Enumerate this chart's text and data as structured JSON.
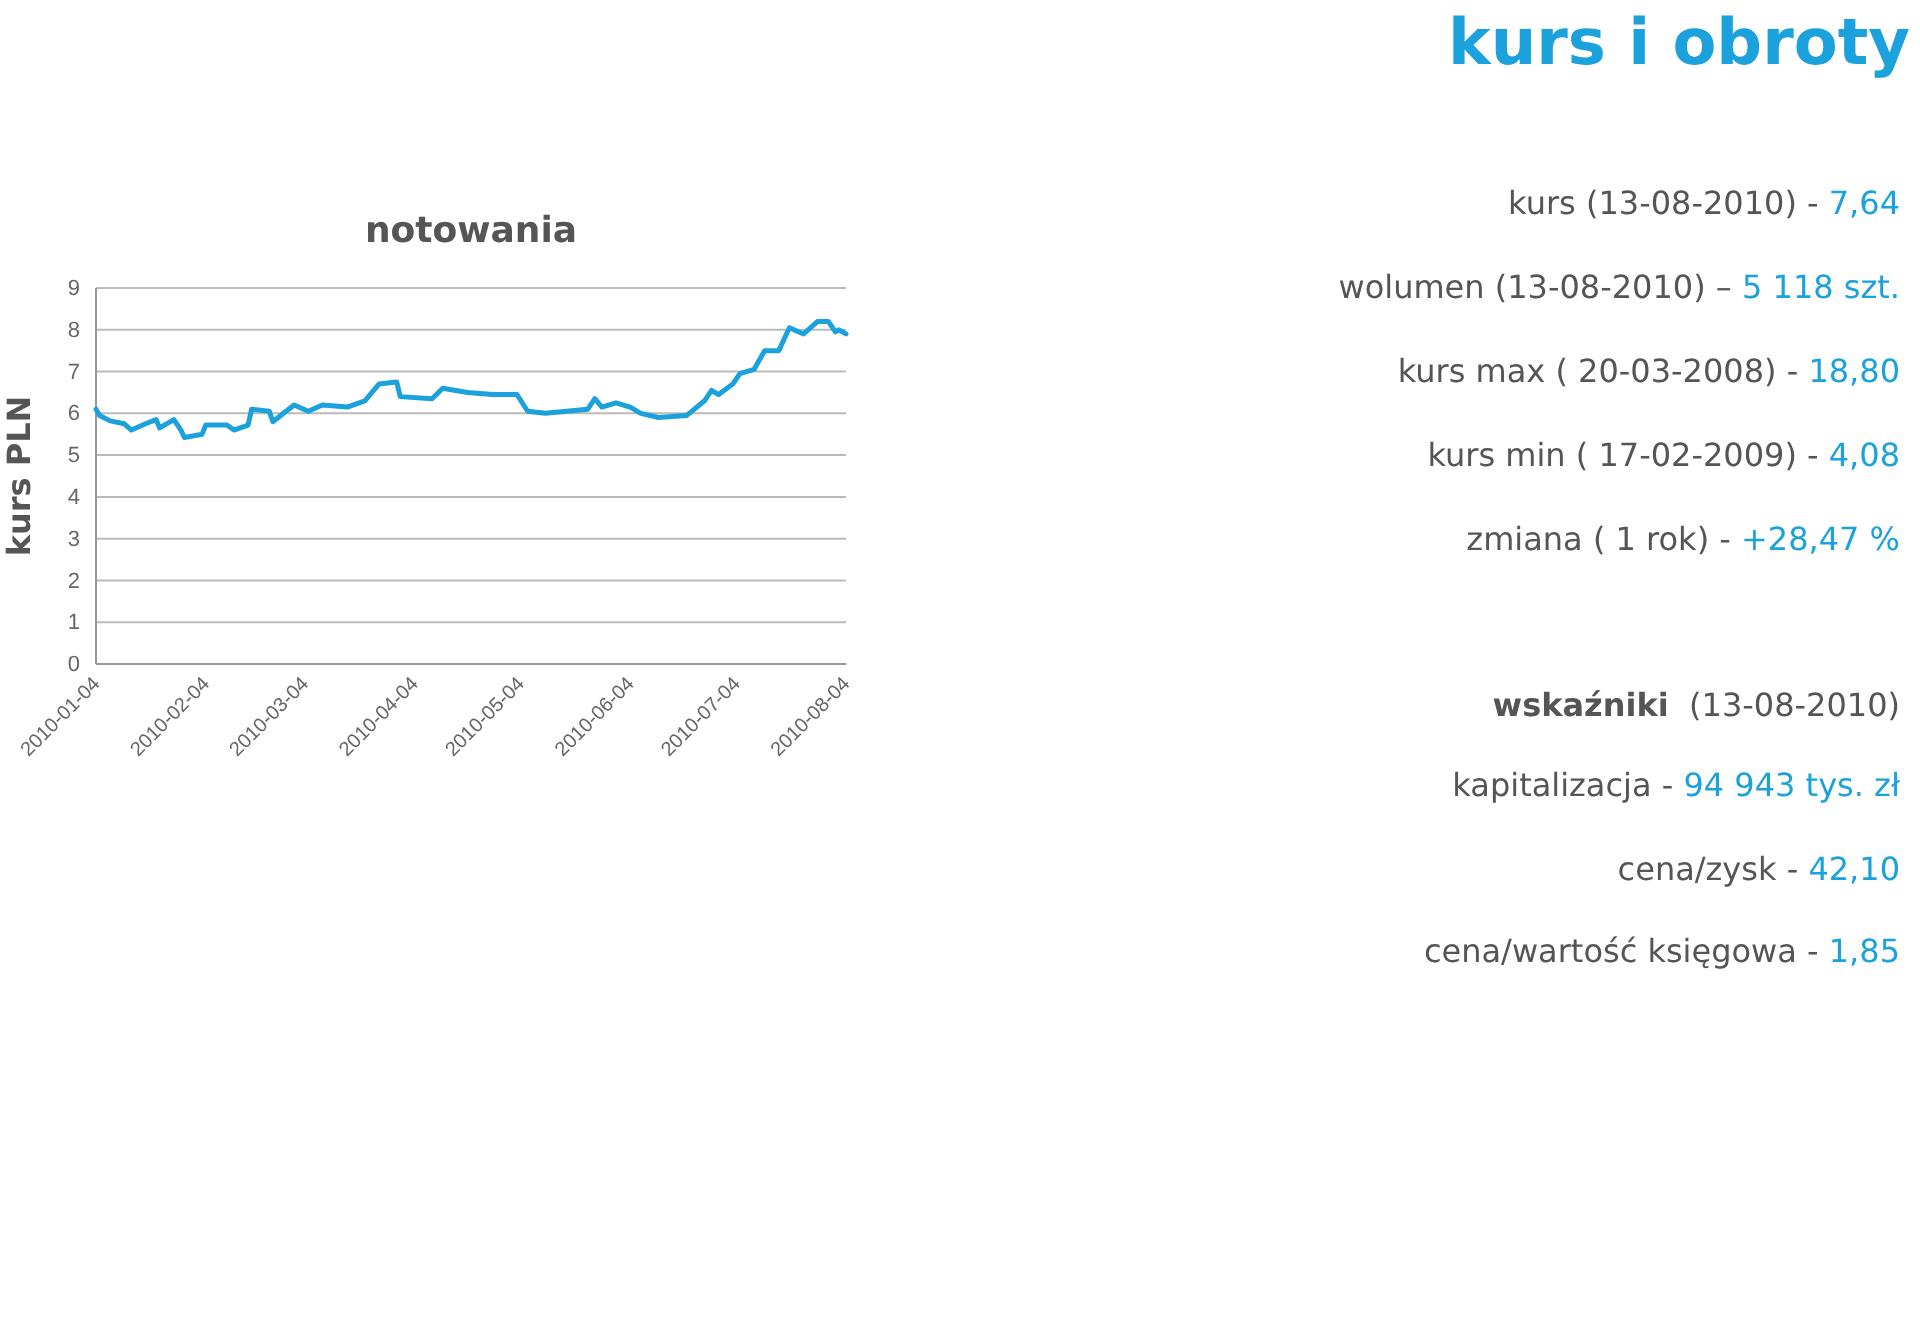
{
  "chart_data": {
    "type": "line",
    "title": "notowania",
    "subtitle": "kurs i obroty",
    "ylabel": "kurs PLN",
    "x": [
      "2010-01-04",
      "2010-01-05",
      "2010-01-08",
      "2010-01-12",
      "2010-01-14",
      "2010-01-18",
      "2010-01-21",
      "2010-01-22",
      "2010-01-26",
      "2010-01-28",
      "2010-01-29",
      "2010-02-03",
      "2010-02-04",
      "2010-02-10",
      "2010-02-12",
      "2010-02-16",
      "2010-02-17",
      "2010-02-22",
      "2010-02-23",
      "2010-02-26",
      "2010-03-01",
      "2010-03-05",
      "2010-03-09",
      "2010-03-16",
      "2010-03-21",
      "2010-03-23",
      "2010-03-25",
      "2010-03-30",
      "2010-03-31",
      "2010-04-09",
      "2010-04-12",
      "2010-04-19",
      "2010-04-26",
      "2010-05-03",
      "2010-05-06",
      "2010-05-11",
      "2010-05-17",
      "2010-05-23",
      "2010-05-25",
      "2010-05-27",
      "2010-05-31",
      "2010-06-04",
      "2010-06-07",
      "2010-06-12",
      "2010-06-20",
      "2010-06-25",
      "2010-06-27",
      "2010-06-29",
      "2010-07-03",
      "2010-07-05",
      "2010-07-09",
      "2010-07-12",
      "2010-07-16",
      "2010-07-19",
      "2010-07-23",
      "2010-07-27",
      "2010-07-30",
      "2010-08-01",
      "2010-08-02",
      "2010-08-04"
    ],
    "series": [
      {
        "color": "#1ba1dc",
        "values": [
          6.1,
          5.95,
          5.82,
          5.75,
          5.6,
          5.75,
          5.85,
          5.65,
          5.85,
          5.6,
          5.42,
          5.5,
          5.72,
          5.72,
          5.6,
          5.72,
          6.1,
          6.05,
          5.8,
          6.0,
          6.2,
          6.05,
          6.2,
          6.15,
          6.3,
          6.5,
          6.7,
          6.75,
          6.4,
          6.35,
          6.6,
          6.5,
          6.45,
          6.45,
          6.05,
          6.0,
          6.05,
          6.1,
          6.35,
          6.15,
          6.25,
          6.15,
          6.0,
          5.9,
          5.95,
          6.3,
          6.55,
          6.45,
          6.7,
          6.95,
          7.05,
          7.5,
          7.5,
          8.05,
          7.9,
          8.2,
          8.2,
          7.95,
          8.0,
          7.9
        ]
      }
    ],
    "xlim": [
      "2010-01-04",
      "2010-08-04"
    ],
    "xticks": [
      {
        "value": "2010-01-04",
        "label": "2010-01-04"
      },
      {
        "value": "2010-02-04",
        "label": "2010-02-04"
      },
      {
        "value": "2010-03-04",
        "label": "2010-03-04"
      },
      {
        "value": "2010-04-04",
        "label": "2010-04-04"
      },
      {
        "value": "2010-05-04",
        "label": "2010-05-04"
      },
      {
        "value": "2010-06-04",
        "label": "2010-06-04"
      },
      {
        "value": "2010-07-04",
        "label": "2010-07-04"
      },
      {
        "value": "2010-08-04",
        "label": "2010-08-04"
      }
    ],
    "ylim": [
      0,
      9
    ],
    "yticks": [
      0,
      1,
      2,
      3,
      4,
      5,
      6,
      7,
      8,
      9
    ],
    "grid": "y",
    "marker": "none",
    "line_style": "solid",
    "annotations": [
      "kurs (13-08-2010) - 7,64",
      "wolumen (13-08-2010) – 5 118 szt.",
      "kurs max ( 20-03-2008) - 18,80",
      "kurs min ( 17-02-2009) - 4,08",
      "zmiana ( 1 rok) - +28,47 %",
      "wskaźniki  (13-08-2010)",
      "kapitalizacja - 94 943 tys. zł",
      "cena/zysk - 42,10",
      "cena/wartość księgowa - 1,85"
    ]
  }
}
